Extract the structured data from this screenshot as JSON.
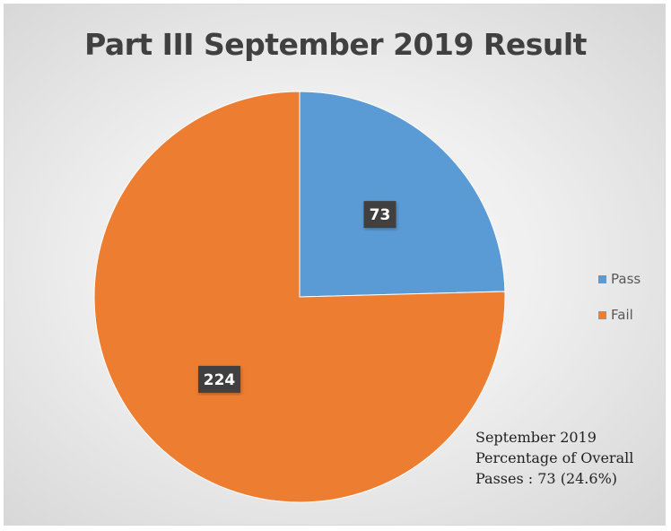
{
  "chart_data": {
    "type": "pie",
    "title": "Part III September 2019 Result",
    "categories": [
      "Pass",
      "Fail"
    ],
    "values": [
      73,
      224
    ],
    "data_labels": [
      "73",
      "224"
    ],
    "colors": [
      "#5b9bd5",
      "#ed7d31"
    ],
    "start_angle_deg": 0,
    "direction": "clockwise",
    "legend_position": "right",
    "grid": false
  },
  "note": {
    "lines": [
      "September 2019",
      "Percentage of Overall",
      "Passes : 73 (24.6%)"
    ]
  }
}
